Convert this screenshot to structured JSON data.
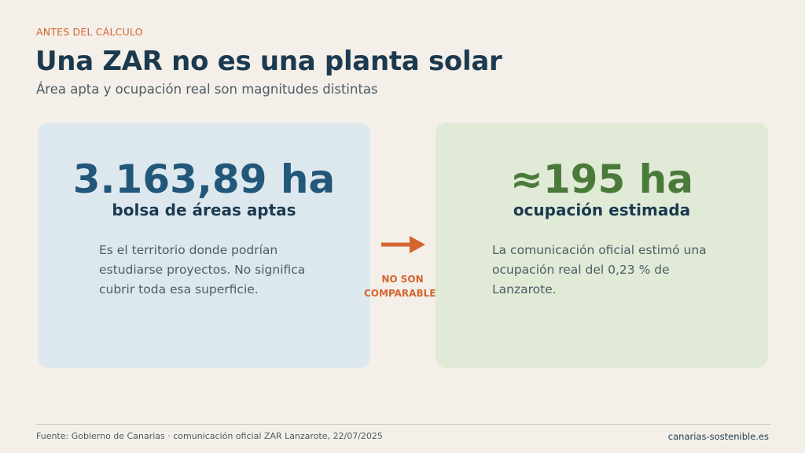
{
  "header": {
    "kicker": "ANTES DEL CÁLCULO",
    "title": "Una ZAR no es una planta solar",
    "subtitle": "Área apta y ocupación real son magnitudes distintas"
  },
  "cards": [
    {
      "value": "3.163,89 ha",
      "label": "bolsa de áreas aptas",
      "body": "Es el territorio donde podrían estudiarse proyectos. No significa cubrir toda esa superficie.",
      "accent": "#22577a",
      "background": "#dde8ee"
    },
    {
      "value": "≈195 ha",
      "label": "ocupación estimada",
      "body": "La comunicación oficial estimó una ocupación real del 0,23 % de Lanzarote.",
      "accent": "#4a7a3a",
      "background": "#e0ead6"
    }
  ],
  "connector": {
    "icon": "arrow-right-icon",
    "label": "NO SON COMPARABLES",
    "color": "#d4652f"
  },
  "footer": {
    "source": "Fuente: Gobierno de Canarias · comunicación oficial ZAR Lanzarote, 22/07/2025",
    "site": "canarias-sostenible.es"
  }
}
